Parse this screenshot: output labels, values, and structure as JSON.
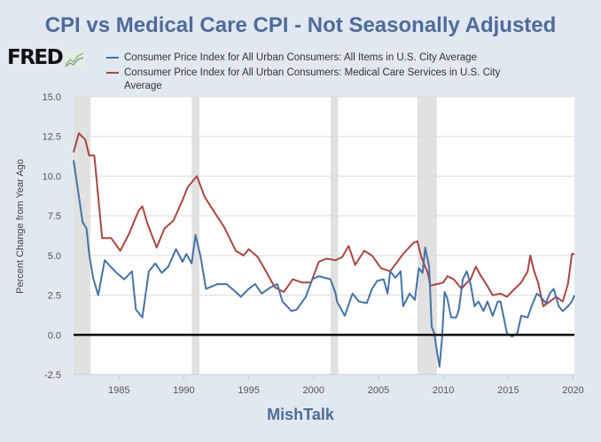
{
  "chart_data": {
    "type": "line",
    "title": "CPI vs Medical Care CPI - Not Seasonally Adjusted",
    "xlabel": "",
    "ylabel": "Percent Change from Year Ago",
    "xlim": [
      1981.5,
      2020.1
    ],
    "ylim": [
      -2.5,
      15.0
    ],
    "yticks": [
      "-2.5",
      "0.0",
      "2.5",
      "5.0",
      "7.5",
      "10.0",
      "12.5",
      "15.0"
    ],
    "ytick_values": [
      -2.5,
      0,
      2.5,
      5,
      7.5,
      10,
      12.5,
      15
    ],
    "xticks": [
      "1985",
      "1990",
      "1995",
      "2000",
      "2005",
      "2010",
      "2015",
      "2020"
    ],
    "xtick_values": [
      1985,
      1990,
      1995,
      2000,
      2005,
      2010,
      2015,
      2020
    ],
    "grid": true,
    "legend_position": "top",
    "recessions": [
      [
        1981.5,
        1982.8
      ],
      [
        1990.6,
        1991.2
      ],
      [
        2001.3,
        2001.9
      ],
      [
        2008.0,
        2009.5
      ]
    ],
    "series": [
      {
        "name": "Consumer Price Index for All Urban Consumers: All Items in U.S. City Average",
        "color": "#4572a7",
        "points": [
          [
            1981.5,
            11.0
          ],
          [
            1982.2,
            7.1
          ],
          [
            1982.5,
            6.7
          ],
          [
            1982.7,
            5.1
          ],
          [
            1983.0,
            3.6
          ],
          [
            1983.4,
            2.5
          ],
          [
            1983.9,
            4.7
          ],
          [
            1984.7,
            4.0
          ],
          [
            1985.4,
            3.5
          ],
          [
            1986.0,
            4.0
          ],
          [
            1986.3,
            1.6
          ],
          [
            1986.8,
            1.1
          ],
          [
            1987.3,
            4.0
          ],
          [
            1987.8,
            4.5
          ],
          [
            1988.3,
            3.9
          ],
          [
            1988.8,
            4.3
          ],
          [
            1989.4,
            5.4
          ],
          [
            1989.9,
            4.6
          ],
          [
            1990.2,
            5.1
          ],
          [
            1990.6,
            4.5
          ],
          [
            1990.9,
            6.3
          ],
          [
            1991.3,
            4.9
          ],
          [
            1991.7,
            2.9
          ],
          [
            1992.6,
            3.2
          ],
          [
            1993.3,
            3.2
          ],
          [
            1994.0,
            2.7
          ],
          [
            1994.4,
            2.4
          ],
          [
            1995.0,
            2.9
          ],
          [
            1995.5,
            3.2
          ],
          [
            1996.0,
            2.6
          ],
          [
            1996.7,
            3.0
          ],
          [
            1997.2,
            3.2
          ],
          [
            1997.6,
            2.1
          ],
          [
            1998.3,
            1.5
          ],
          [
            1998.7,
            1.6
          ],
          [
            1999.4,
            2.4
          ],
          [
            1999.9,
            3.5
          ],
          [
            2000.4,
            3.7
          ],
          [
            2001.3,
            3.5
          ],
          [
            2001.7,
            2.6
          ],
          [
            2001.8,
            2.1
          ],
          [
            2002.4,
            1.2
          ],
          [
            2003.0,
            2.6
          ],
          [
            2003.5,
            2.1
          ],
          [
            2004.1,
            2.0
          ],
          [
            2004.5,
            2.9
          ],
          [
            2004.9,
            3.4
          ],
          [
            2005.4,
            3.5
          ],
          [
            2005.7,
            2.6
          ],
          [
            2005.9,
            4.0
          ],
          [
            2006.3,
            3.6
          ],
          [
            2006.7,
            4.0
          ],
          [
            2006.9,
            1.8
          ],
          [
            2007.4,
            2.6
          ],
          [
            2007.8,
            2.2
          ],
          [
            2008.1,
            4.2
          ],
          [
            2008.4,
            3.9
          ],
          [
            2008.6,
            5.5
          ],
          [
            2008.9,
            4.3
          ],
          [
            2009.1,
            0.5
          ],
          [
            2009.3,
            0.1
          ],
          [
            2009.5,
            -1.0
          ],
          [
            2009.7,
            -2.0
          ],
          [
            2009.9,
            -0.2
          ],
          [
            2010.1,
            2.7
          ],
          [
            2010.3,
            2.3
          ],
          [
            2010.6,
            1.1
          ],
          [
            2011.0,
            1.1
          ],
          [
            2011.2,
            1.6
          ],
          [
            2011.5,
            3.5
          ],
          [
            2011.8,
            4.0
          ],
          [
            2012.1,
            3.2
          ],
          [
            2012.4,
            1.8
          ],
          [
            2012.7,
            2.1
          ],
          [
            2013.1,
            1.5
          ],
          [
            2013.4,
            2.1
          ],
          [
            2013.8,
            1.2
          ],
          [
            2014.2,
            2.1
          ],
          [
            2014.4,
            2.1
          ],
          [
            2014.9,
            0.1
          ],
          [
            2015.3,
            -0.1
          ],
          [
            2015.7,
            0.1
          ],
          [
            2016.0,
            1.2
          ],
          [
            2016.5,
            1.1
          ],
          [
            2016.8,
            1.8
          ],
          [
            2017.2,
            2.6
          ],
          [
            2017.5,
            2.4
          ],
          [
            2017.9,
            2.0
          ],
          [
            2018.2,
            2.6
          ],
          [
            2018.5,
            2.9
          ],
          [
            2018.9,
            1.8
          ],
          [
            2019.2,
            1.5
          ],
          [
            2019.6,
            1.8
          ],
          [
            2019.9,
            2.1
          ],
          [
            2020.1,
            2.5
          ]
        ]
      },
      {
        "name": "Consumer Price Index for All Urban Consumers: Medical Care Services in U.S. City Average",
        "color": "#aa4643",
        "points": [
          [
            1981.5,
            11.5
          ],
          [
            1981.9,
            12.7
          ],
          [
            1982.4,
            12.3
          ],
          [
            1982.7,
            11.3
          ],
          [
            1983.1,
            11.3
          ],
          [
            1983.7,
            6.1
          ],
          [
            1984.4,
            6.1
          ],
          [
            1985.1,
            5.3
          ],
          [
            1985.8,
            6.4
          ],
          [
            1986.5,
            7.8
          ],
          [
            1986.8,
            8.1
          ],
          [
            1987.2,
            7.0
          ],
          [
            1987.9,
            5.5
          ],
          [
            1988.5,
            6.7
          ],
          [
            1989.2,
            7.2
          ],
          [
            1989.9,
            8.5
          ],
          [
            1990.3,
            9.3
          ],
          [
            1991.0,
            10.0
          ],
          [
            1991.6,
            8.7
          ],
          [
            1992.3,
            7.8
          ],
          [
            1993.1,
            6.8
          ],
          [
            1994.0,
            5.3
          ],
          [
            1994.6,
            5.0
          ],
          [
            1995.0,
            5.4
          ],
          [
            1995.7,
            4.9
          ],
          [
            1996.4,
            3.9
          ],
          [
            1997.0,
            3.0
          ],
          [
            1997.7,
            2.7
          ],
          [
            1998.4,
            3.5
          ],
          [
            1999.1,
            3.3
          ],
          [
            1999.8,
            3.3
          ],
          [
            2000.4,
            4.6
          ],
          [
            2001.0,
            4.8
          ],
          [
            2001.7,
            4.7
          ],
          [
            2002.2,
            4.9
          ],
          [
            2002.7,
            5.6
          ],
          [
            2003.2,
            4.4
          ],
          [
            2003.9,
            5.3
          ],
          [
            2004.5,
            5.0
          ],
          [
            2005.2,
            4.2
          ],
          [
            2005.9,
            4.0
          ],
          [
            2006.9,
            5.1
          ],
          [
            2007.7,
            5.8
          ],
          [
            2008.0,
            5.9
          ],
          [
            2008.3,
            4.9
          ],
          [
            2008.8,
            3.9
          ],
          [
            2009.0,
            3.1
          ],
          [
            2009.5,
            3.2
          ],
          [
            2010.0,
            3.3
          ],
          [
            2010.3,
            3.7
          ],
          [
            2010.8,
            3.5
          ],
          [
            2011.4,
            2.9
          ],
          [
            2011.7,
            3.2
          ],
          [
            2012.1,
            3.5
          ],
          [
            2012.5,
            4.3
          ],
          [
            2012.9,
            3.7
          ],
          [
            2013.3,
            3.2
          ],
          [
            2013.8,
            2.5
          ],
          [
            2014.4,
            2.6
          ],
          [
            2014.9,
            2.4
          ],
          [
            2015.5,
            2.9
          ],
          [
            2016.0,
            3.3
          ],
          [
            2016.5,
            4.0
          ],
          [
            2016.7,
            5.0
          ],
          [
            2017.0,
            4.0
          ],
          [
            2017.3,
            3.3
          ],
          [
            2017.7,
            1.8
          ],
          [
            2018.2,
            2.1
          ],
          [
            2018.7,
            2.4
          ],
          [
            2019.2,
            2.1
          ],
          [
            2019.6,
            3.2
          ],
          [
            2019.8,
            4.4
          ],
          [
            2019.9,
            5.1
          ],
          [
            2020.1,
            5.1
          ]
        ]
      }
    ],
    "source_logo": "FRED",
    "footer": "MishTalk"
  },
  "legend": [
    {
      "label": "Consumer Price Index for All Urban Consumers: All Items in U.S. City Average",
      "color": "#4572a7"
    },
    {
      "label_line1": "Consumer Price Index for All Urban Consumers: Medical Care Services in U.S. City",
      "label_line2": "Average",
      "color": "#aa4643"
    }
  ],
  "colors": {
    "background": "#e1e8f1",
    "title": "#4f6b9a",
    "recession": "#e1e1e1",
    "grid": "#dddddd",
    "zero_line": "#000000"
  }
}
